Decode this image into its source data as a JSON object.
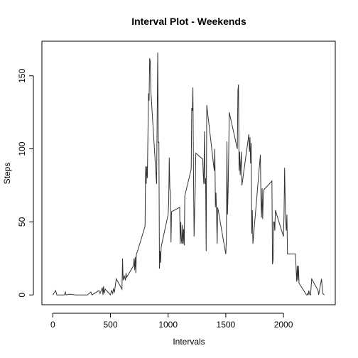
{
  "chart_data": {
    "type": "line",
    "title": "Interval Plot - Weekends",
    "x_label": "Intervals",
    "y_label": "Steps",
    "color": "#333333",
    "x": [
      0,
      25,
      35,
      100,
      110,
      115,
      145,
      200,
      300,
      330,
      340,
      400,
      410,
      430,
      435,
      440,
      445,
      455,
      500,
      510,
      520,
      525,
      535,
      550,
      600,
      605,
      610,
      620,
      630,
      635,
      640,
      700,
      705,
      710,
      715,
      720,
      725,
      735,
      800,
      805,
      810,
      815,
      820,
      830,
      835,
      840,
      845,
      850,
      900,
      910,
      915,
      920,
      925,
      930,
      935,
      940,
      1000,
      1005,
      1010,
      1015,
      1020,
      1025,
      1030,
      1100,
      1105,
      1110,
      1115,
      1120,
      1125,
      1130,
      1135,
      1140,
      1145,
      1200,
      1205,
      1210,
      1215,
      1220,
      1225,
      1230,
      1235,
      1240,
      1300,
      1305,
      1310,
      1315,
      1320,
      1325,
      1330,
      1335,
      1400,
      1405,
      1410,
      1415,
      1420,
      1425,
      1430,
      1500,
      1505,
      1510,
      1515,
      1520,
      1525,
      1530,
      1600,
      1605,
      1610,
      1615,
      1620,
      1625,
      1630,
      1635,
      1640,
      1700,
      1705,
      1710,
      1715,
      1720,
      1725,
      1730,
      1735,
      1800,
      1805,
      1810,
      1815,
      1820,
      1825,
      1830,
      1900,
      1905,
      1910,
      1915,
      1920,
      1925,
      1930,
      2000,
      2005,
      2010,
      2015,
      2020,
      2025,
      2030,
      2035,
      2100,
      2105,
      2110,
      2115,
      2120,
      2125,
      2130,
      2135,
      2200,
      2205,
      2210,
      2215,
      2220,
      2225,
      2230,
      2235,
      2245,
      2300,
      2305,
      2330,
      2340,
      2355
    ],
    "values": [
      0,
      3,
      0,
      0,
      2,
      0,
      0.5,
      0,
      0,
      2,
      0,
      3,
      1,
      5,
      0,
      6,
      1,
      4,
      0,
      3,
      1,
      4,
      2,
      11,
      4,
      25,
      10,
      13,
      10,
      15,
      12,
      20,
      25,
      17,
      26,
      15,
      28,
      30,
      47,
      88,
      76,
      88,
      80,
      138,
      133,
      162,
      160,
      140,
      76,
      166,
      104,
      105,
      18,
      30,
      22,
      33,
      55,
      63,
      94,
      73,
      70,
      36,
      57,
      60,
      35,
      50,
      38,
      35,
      48,
      35,
      45,
      34,
      68,
      86,
      128,
      126,
      142,
      85,
      40,
      58,
      72,
      97,
      93,
      82,
      76,
      112,
      76,
      80,
      30,
      130,
      85,
      100,
      60,
      70,
      55,
      35,
      60,
      28,
      38,
      105,
      55,
      70,
      95,
      125,
      100,
      140,
      144,
      85,
      98,
      82,
      90,
      98,
      75,
      110,
      98,
      108,
      90,
      104,
      42,
      58,
      35,
      96,
      64,
      53,
      73,
      52,
      68,
      72,
      78,
      21,
      24,
      50,
      50,
      44,
      58,
      40,
      55,
      87,
      65,
      50,
      44,
      55,
      28,
      28,
      28,
      17,
      9,
      20,
      10,
      20,
      8,
      0,
      0,
      1,
      0,
      3,
      1,
      0,
      0,
      11,
      3,
      0,
      11,
      1,
      0
    ],
    "xlim": [
      -94.2,
      2449.2
    ],
    "ylim": [
      -6.7,
      173.7
    ],
    "xticks": [
      0,
      500,
      1000,
      1500,
      2000
    ],
    "yticks": [
      0,
      50,
      100,
      150
    ]
  }
}
